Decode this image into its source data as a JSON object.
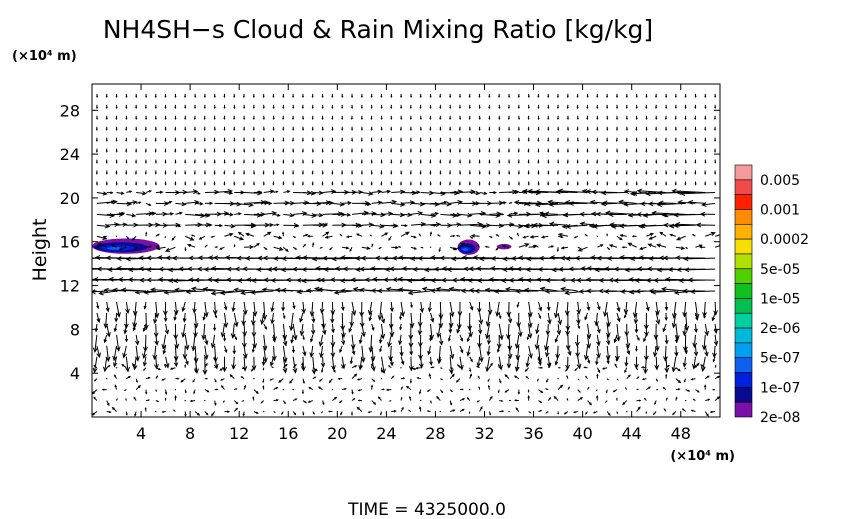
{
  "chart_data": {
    "type": "contour-vector",
    "title": "NH4SH−s Cloud & Rain Mixing Ratio [kg/kg]",
    "ylabel": "Height",
    "y_unit": "(×10⁴ m)",
    "x_unit": "(×10⁴ m)",
    "xlim": [
      0,
      51.2
    ],
    "ylim": [
      0,
      30.4
    ],
    "x_ticks": [
      "4",
      "8",
      "12",
      "16",
      "20",
      "24",
      "28",
      "32",
      "36",
      "40",
      "44",
      "48"
    ],
    "y_ticks": [
      "4",
      "8",
      "12",
      "16",
      "20",
      "24",
      "28"
    ],
    "colorbar": {
      "labels": [
        "0.005",
        "0.001",
        "0.0002",
        "5e-05",
        "1e-05",
        "2e-06",
        "5e-07",
        "1e-07",
        "2e-08"
      ],
      "colors": [
        "#f59a9a",
        "#f04a4a",
        "#ff2000",
        "#ff8c00",
        "#ffb000",
        "#f5e000",
        "#b0e000",
        "#50d000",
        "#10c020",
        "#00c050",
        "#00d0a0",
        "#00b8d8",
        "#00a0f0",
        "#1060f0",
        "#0020e0",
        "#0a0a90",
        "#7a10a8"
      ]
    },
    "contour_regions": [
      {
        "x": [
          0,
          5.5
        ],
        "y": [
          14.9,
          16.3
        ],
        "min_level": "2e-08",
        "max_level": "1e-07"
      },
      {
        "x": [
          29.8,
          31.6
        ],
        "y": [
          14.8,
          16.2
        ],
        "min_level": "2e-08",
        "max_level": "1e-07"
      },
      {
        "x": [
          33.0,
          34.2
        ],
        "y": [
          15.3,
          15.8
        ],
        "min_level": "2e-08",
        "max_level": "2e-08"
      }
    ],
    "wind_bands": [
      {
        "y": [
          12.5,
          14.5
        ],
        "direction": "westward",
        "speed": "strong"
      },
      {
        "y": [
          11,
          12.5
        ],
        "direction": "westward",
        "speed": "moderate"
      },
      {
        "y": [
          18.5,
          20.5
        ],
        "direction": "mixed",
        "speed": "moderate"
      }
    ]
  },
  "time_label": "TIME  =  4325000.0"
}
